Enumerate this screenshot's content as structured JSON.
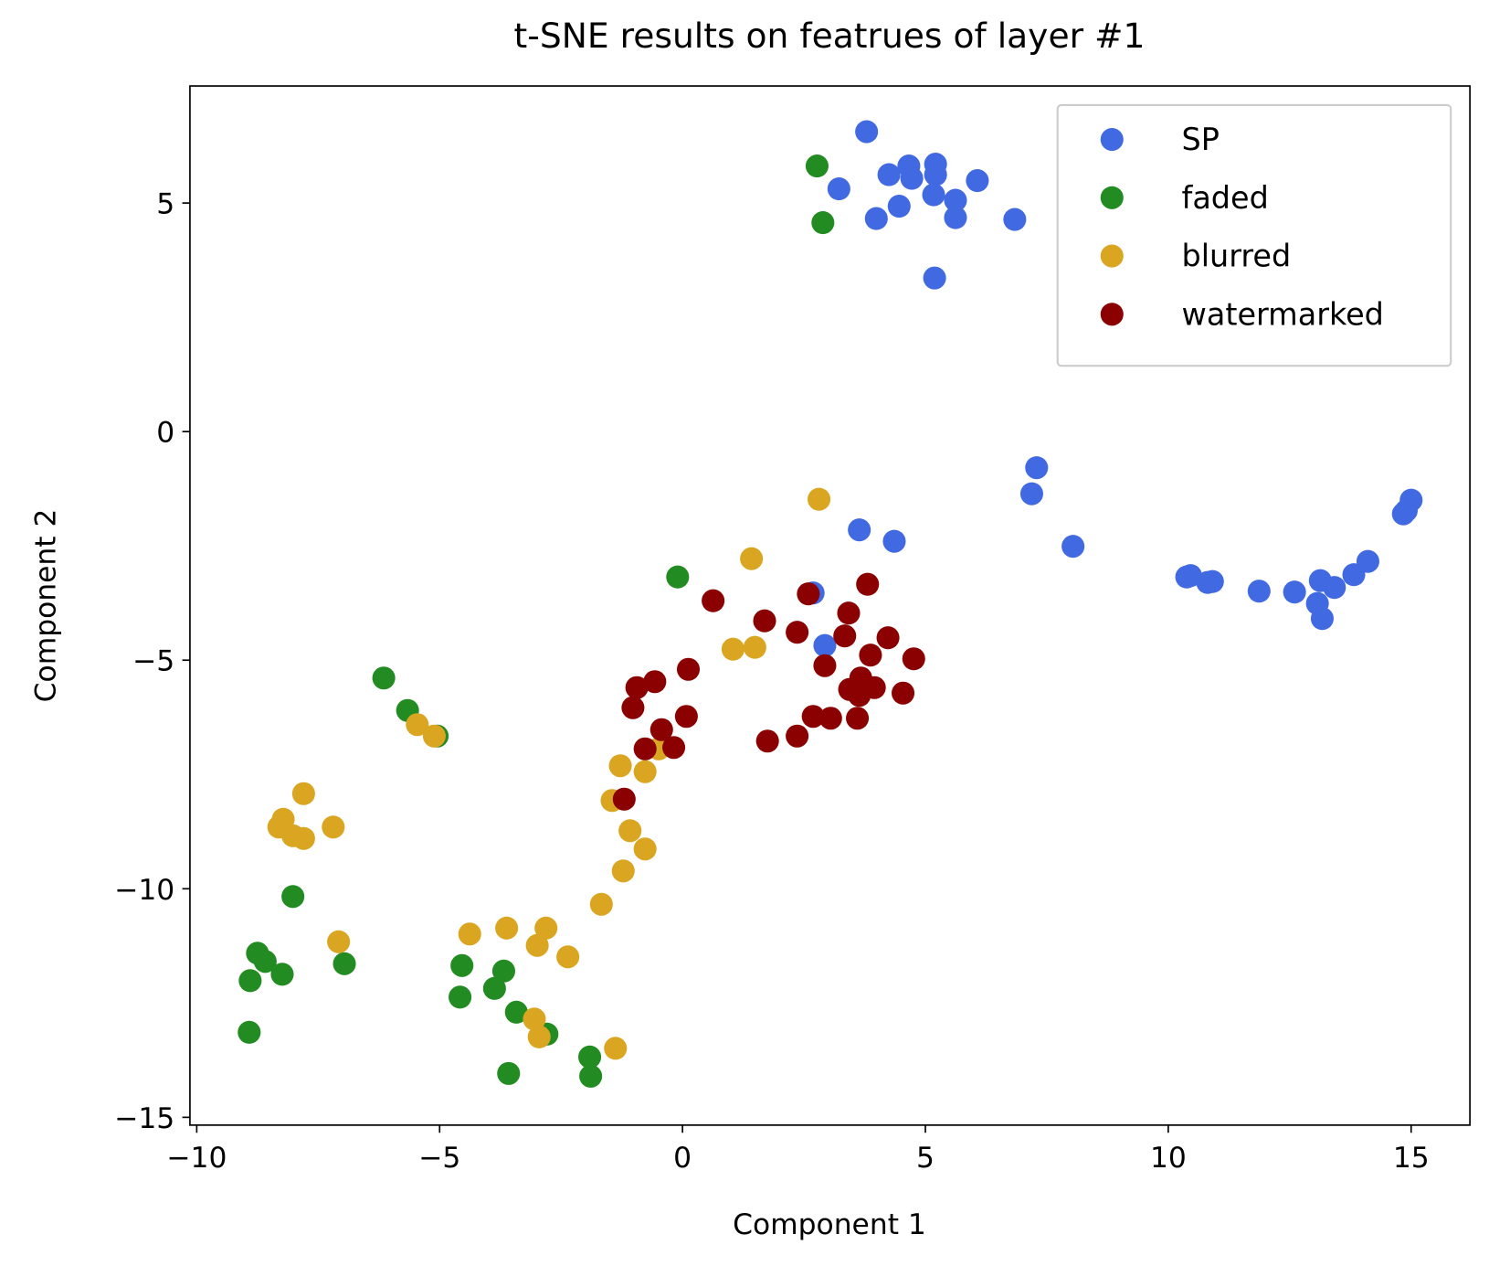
{
  "chart_data": {
    "type": "scatter",
    "title": "t-SNE results on featrues of layer #1",
    "x_label": "Component 1",
    "y_label": "Component 2",
    "xlim": [
      -10.14,
      16.21
    ],
    "ylim": [
      -15.17,
      7.56
    ],
    "xticks": [
      {
        "value": -10,
        "label": "−10"
      },
      {
        "value": -5,
        "label": "−5"
      },
      0,
      5,
      10,
      15
    ],
    "yticks": [
      {
        "value": -15,
        "label": "−15"
      },
      {
        "value": -10,
        "label": "−10"
      },
      {
        "value": -5,
        "label": "−5"
      },
      0,
      5
    ],
    "legend": "upper right",
    "series": [
      {
        "name": "SP",
        "color": "#4169e1",
        "x": [
          3.79,
          3.22,
          4.25,
          4.66,
          4.72,
          5.21,
          5.21,
          5.17,
          4.46,
          3.99,
          5.62,
          5.62,
          6.07,
          6.84,
          5.19,
          7.29,
          7.19,
          3.64,
          4.36,
          8.04,
          10.38,
          10.46,
          10.81,
          10.91,
          11.87,
          12.6,
          13.13,
          13.07,
          13.17,
          13.42,
          13.82,
          14.11,
          14.84,
          14.9,
          15.0,
          2.69,
          2.93
        ],
        "y": [
          6.56,
          5.31,
          5.62,
          5.81,
          5.54,
          5.85,
          5.62,
          5.18,
          4.93,
          4.66,
          5.06,
          4.68,
          5.49,
          4.64,
          3.36,
          -0.79,
          -1.36,
          -2.15,
          -2.4,
          -2.51,
          -3.18,
          -3.15,
          -3.3,
          -3.28,
          -3.49,
          -3.51,
          -3.26,
          -3.76,
          -4.09,
          -3.41,
          -3.13,
          -2.84,
          -1.8,
          -1.73,
          -1.5,
          -3.53,
          -4.68
        ]
      },
      {
        "name": "faded",
        "color": "#228b22",
        "x": [
          2.77,
          2.89,
          -0.1,
          -6.15,
          -5.66,
          -5.05,
          -8.02,
          -8.75,
          -8.59,
          -8.24,
          -8.9,
          -6.96,
          -8.92,
          -4.54,
          -3.68,
          -3.87,
          -4.58,
          -3.42,
          -2.79,
          -3.58,
          -1.91,
          -1.89
        ],
        "y": [
          5.81,
          4.57,
          -3.18,
          -5.39,
          -6.1,
          -6.66,
          -10.17,
          -11.41,
          -11.59,
          -11.87,
          -12.01,
          -11.64,
          -13.14,
          -11.68,
          -11.8,
          -12.18,
          -12.37,
          -12.7,
          -13.18,
          -14.04,
          -13.68,
          -14.1
        ]
      },
      {
        "name": "blurred",
        "color": "#daa520",
        "x": [
          2.81,
          1.42,
          1.04,
          1.49,
          -5.46,
          -5.11,
          -0.49,
          -1.28,
          -0.77,
          -7.8,
          -1.45,
          -8.22,
          -8.31,
          -7.19,
          -8.02,
          -7.8,
          -1.08,
          -0.77,
          -1.22,
          -1.67,
          -3.62,
          -2.81,
          -4.38,
          -7.08,
          -2.99,
          -2.36,
          -3.05,
          -2.95,
          -1.38
        ],
        "y": [
          -1.48,
          -2.78,
          -4.76,
          -4.72,
          -6.41,
          -6.66,
          -6.94,
          -7.31,
          -7.44,
          -7.92,
          -8.07,
          -8.48,
          -8.65,
          -8.65,
          -8.84,
          -8.9,
          -8.73,
          -9.13,
          -9.61,
          -10.34,
          -10.86,
          -10.86,
          -10.99,
          -11.16,
          -11.24,
          -11.49,
          -12.85,
          -13.24,
          -13.49
        ]
      },
      {
        "name": "watermarked",
        "color": "#8b0000",
        "x": [
          3.81,
          2.59,
          0.63,
          3.42,
          1.69,
          2.36,
          3.34,
          4.23,
          3.87,
          4.76,
          2.93,
          0.12,
          3.67,
          -0.57,
          -0.94,
          3.44,
          3.95,
          3.64,
          4.54,
          -1.02,
          0.08,
          2.69,
          3.05,
          3.6,
          -0.43,
          2.36,
          1.75,
          -0.77,
          -0.18,
          -1.2
        ],
        "y": [
          -3.34,
          -3.55,
          -3.7,
          -3.97,
          -4.14,
          -4.39,
          -4.47,
          -4.51,
          -4.89,
          -4.97,
          -5.12,
          -5.2,
          -5.39,
          -5.47,
          -5.6,
          -5.64,
          -5.6,
          -5.77,
          -5.72,
          -6.04,
          -6.23,
          -6.23,
          -6.27,
          -6.27,
          -6.52,
          -6.66,
          -6.77,
          -6.94,
          -6.91,
          -8.04
        ]
      }
    ]
  }
}
